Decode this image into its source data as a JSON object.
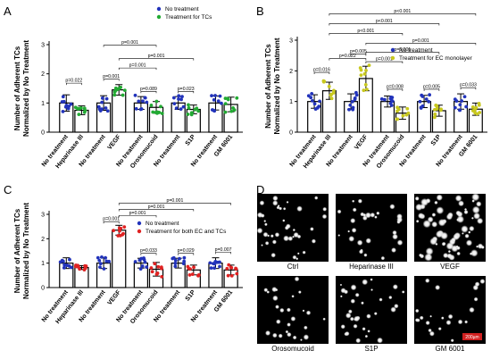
{
  "colors": {
    "no_treatment": "#2233bb",
    "treatment_A": "#22aa33",
    "treatment_B": "#c8c81e",
    "treatment_C": "#e02222",
    "scale_bar": "#d02020"
  },
  "chart_data": [
    {
      "panel": "A",
      "type": "bar",
      "ylabel_lines": [
        "Number of Adherent TCs",
        "Normalized by No Treatment"
      ],
      "ylim": [
        0,
        3
      ],
      "yticks": [
        "0",
        "1",
        "2",
        "3"
      ],
      "legend": [
        "No treatment",
        "Treatment for TCs"
      ],
      "categories": [
        "No treatment",
        "Heparinase III",
        "No treatment",
        "VEGF",
        "No treatment",
        "Orosomucoid",
        "No treatment",
        "S1P",
        "No treatment",
        "GM 6001"
      ],
      "series_of_bar": [
        0,
        1,
        0,
        1,
        0,
        1,
        0,
        1,
        0,
        1
      ],
      "values": [
        1.0,
        0.75,
        1.0,
        1.45,
        1.0,
        0.85,
        1.0,
        0.78,
        1.0,
        0.95
      ],
      "errors": [
        0.28,
        0.15,
        0.25,
        0.18,
        0.22,
        0.2,
        0.22,
        0.15,
        0.24,
        0.25
      ],
      "brackets": [
        {
          "from": 0,
          "to": 1,
          "y": 1.68,
          "label": "p=0.022"
        },
        {
          "from": 2,
          "to": 3,
          "y": 1.82,
          "label": "p=0.001"
        },
        {
          "from": 4,
          "to": 5,
          "y": 1.4,
          "label": "p=0.089"
        },
        {
          "from": 6,
          "to": 7,
          "y": 1.4,
          "label": "p=0.023"
        },
        {
          "from": 3,
          "to": 5,
          "y": 2.2,
          "label": "p=0.001"
        },
        {
          "from": 3,
          "to": 7,
          "y": 2.52,
          "label": "p=0.001"
        },
        {
          "from": 2,
          "to": 5,
          "y": 2.98,
          "label": "p=0.001"
        }
      ]
    },
    {
      "panel": "B",
      "type": "bar",
      "ylabel_lines": [
        "Number of Adherent TCs",
        "Normalized by No Treatment"
      ],
      "ylim": [
        0,
        3
      ],
      "yticks": [
        "0",
        "1",
        "2",
        "3"
      ],
      "legend": [
        "No treatment",
        "Treatment for EC monolayer"
      ],
      "categories": [
        "No treatment",
        "Heparinase III",
        "No treatment",
        "VEGF",
        "No treatment",
        "Orosomucoid",
        "No treatment",
        "S1P",
        "No treatment",
        "GM 6001"
      ],
      "series_of_bar": [
        0,
        1,
        0,
        1,
        0,
        1,
        0,
        1,
        0,
        1
      ],
      "values": [
        1.0,
        1.35,
        1.0,
        1.75,
        1.0,
        0.62,
        1.0,
        0.7,
        1.0,
        0.75
      ],
      "errors": [
        0.22,
        0.28,
        0.25,
        0.4,
        0.18,
        0.2,
        0.2,
        0.18,
        0.25,
        0.2
      ],
      "brackets": [
        {
          "from": 0,
          "to": 1,
          "y": 1.95,
          "label": "p=0.016"
        },
        {
          "from": 1,
          "to": 3,
          "y": 2.4,
          "label": "p=0.022"
        },
        {
          "from": 2,
          "to": 3,
          "y": 2.55,
          "label": "p=0.005"
        },
        {
          "from": 4,
          "to": 5,
          "y": 1.4,
          "label": "p=0.008"
        },
        {
          "from": 6,
          "to": 7,
          "y": 1.4,
          "label": "p=0.005"
        },
        {
          "from": 8,
          "to": 9,
          "y": 1.45,
          "label": "p=0.033"
        },
        {
          "from": 3,
          "to": 5,
          "y": 2.3,
          "label": "p=0.001"
        },
        {
          "from": 3,
          "to": 7,
          "y": 2.6,
          "label": "p=0.001"
        },
        {
          "from": 3,
          "to": 9,
          "y": 2.9,
          "label": "p=0.001"
        },
        {
          "from": 1,
          "to": 5,
          "y": 3.22,
          "label": "p<0.001"
        },
        {
          "from": 1,
          "to": 7,
          "y": 3.54,
          "label": "p<0.001"
        },
        {
          "from": 1,
          "to": 9,
          "y": 3.86,
          "label": "p<0.001"
        },
        {
          "from": 1,
          "to": 9,
          "y": 4.2,
          "label": "p=0.001"
        }
      ]
    },
    {
      "panel": "C",
      "type": "bar",
      "ylabel_lines": [
        "Number of Adherent TCs",
        "Normalized by No Treatment"
      ],
      "ylim": [
        0,
        3
      ],
      "yticks": [
        "0",
        "1",
        "2",
        "3"
      ],
      "legend": [
        "No treatment",
        "Treatment for both EC and TCs"
      ],
      "categories": [
        "No treatment",
        "Heparinase III",
        "No treatment",
        "VEGF",
        "No treatment",
        "Orosomucoid",
        "No treatment",
        "S1P",
        "No treatment",
        "GM 6001"
      ],
      "series_of_bar": [
        0,
        1,
        0,
        1,
        0,
        1,
        0,
        1,
        0,
        1
      ],
      "values": [
        1.0,
        0.82,
        1.0,
        2.35,
        1.0,
        0.75,
        1.0,
        0.72,
        1.0,
        0.72
      ],
      "errors": [
        0.22,
        0.08,
        0.22,
        0.2,
        0.2,
        0.28,
        0.2,
        0.2,
        0.22,
        0.2
      ],
      "brackets": [
        {
          "from": 2,
          "to": 3,
          "y": 2.7,
          "label": "p=0.001"
        },
        {
          "from": 4,
          "to": 5,
          "y": 1.4,
          "label": "p=0.033"
        },
        {
          "from": 6,
          "to": 7,
          "y": 1.4,
          "label": "p=0.029"
        },
        {
          "from": 8,
          "to": 9,
          "y": 1.45,
          "label": "p=0.007"
        },
        {
          "from": 3,
          "to": 5,
          "y": 2.95,
          "label": "p=0.001"
        },
        {
          "from": 3,
          "to": 7,
          "y": 3.2,
          "label": "p=0.001"
        },
        {
          "from": 3,
          "to": 9,
          "y": 3.45,
          "label": "p=0.001"
        }
      ]
    }
  ],
  "micrographs": {
    "panel": "D",
    "labels": [
      "Ctrl",
      "Heparinase III",
      "VEGF",
      "Orosomucoid",
      "S1P",
      "GM 6001"
    ],
    "watermark": "200µm"
  }
}
